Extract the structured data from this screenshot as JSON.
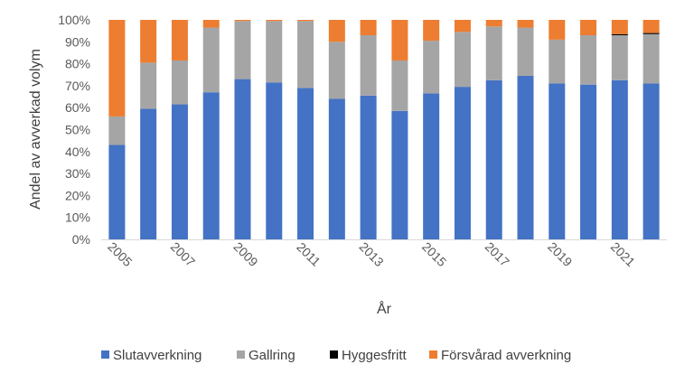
{
  "chart_data": {
    "type": "bar",
    "stacked": true,
    "xlabel": "År",
    "ylabel": "Andel av avverkad volym",
    "ylim": [
      0,
      100
    ],
    "yticks": [
      "0%",
      "10%",
      "20%",
      "30%",
      "40%",
      "50%",
      "60%",
      "70%",
      "80%",
      "90%",
      "100%"
    ],
    "categories": [
      "2005",
      "2006",
      "2007",
      "2008",
      "2009",
      "2010",
      "2011",
      "2012",
      "2013",
      "2014",
      "2015",
      "2016",
      "2017",
      "2018",
      "2019",
      "2020",
      "2021",
      "2022"
    ],
    "xtick_labels": [
      "2005",
      "2007",
      "2009",
      "2011",
      "2013",
      "2015",
      "2017",
      "2019",
      "2021"
    ],
    "grid": false,
    "legend_position": "bottom",
    "series": [
      {
        "name": "Slutavverkning",
        "color": "#4472C4",
        "values": [
          43,
          59.5,
          61.5,
          67,
          73,
          71.5,
          69,
          64,
          65.5,
          58.5,
          66.5,
          69.5,
          72.5,
          74.5,
          71,
          70.5,
          72.5,
          71
        ]
      },
      {
        "name": "Gallring",
        "color": "#A5A5A5",
        "values": [
          13,
          21,
          20,
          29.5,
          26.5,
          28,
          30.5,
          26,
          27.5,
          23,
          24,
          25,
          24.5,
          22,
          20,
          22.5,
          20.5,
          22.5
        ]
      },
      {
        "name": "Hyggesfritt",
        "color": "#000000",
        "values": [
          0,
          0,
          0,
          0,
          0,
          0,
          0,
          0,
          0,
          0,
          0,
          0,
          0,
          0,
          0,
          0,
          0.5,
          0.5
        ]
      },
      {
        "name": "Försvårad avverkning",
        "color": "#ED7D31",
        "values": [
          44,
          19.5,
          18.5,
          3.5,
          0.5,
          0.5,
          0.5,
          10,
          7,
          18.5,
          9.5,
          5.5,
          3,
          3.5,
          9,
          7,
          6.5,
          6
        ]
      }
    ]
  }
}
